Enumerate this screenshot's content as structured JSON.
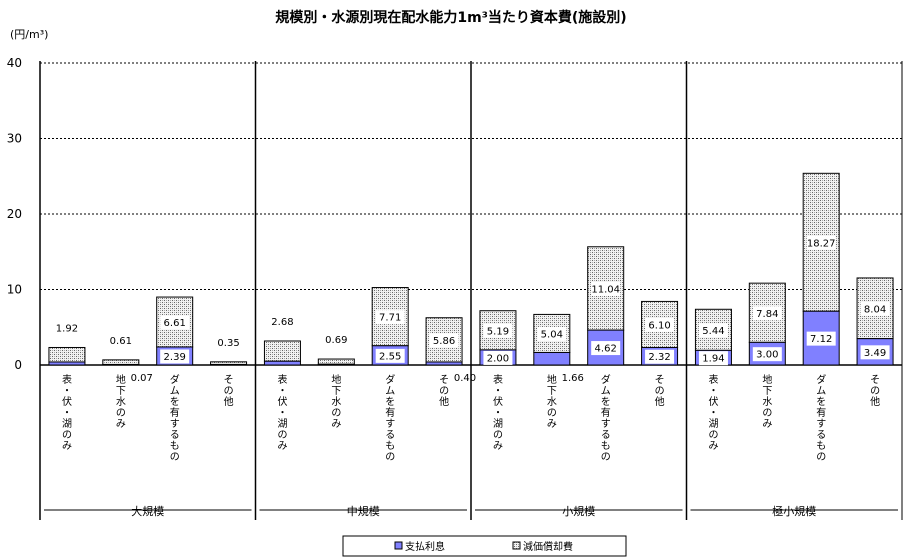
{
  "chart_data": {
    "type": "bar",
    "stacked": true,
    "title": "規模別・水源別現在配水能力1m³当たり資本費(施設別)",
    "unit_label": "(円/m³)",
    "ylim": [
      0,
      40
    ],
    "yticks": [
      "0",
      "10",
      "20",
      "30",
      "40"
    ],
    "grid": "dashed-horizontal",
    "legend_position": "bottom",
    "groups": [
      {
        "name": "大規模",
        "categories": [
          {
            "label": "表・伏・湖のみ",
            "interest": 0.4,
            "depreciation": 1.92
          },
          {
            "label": "地下水のみ",
            "interest": 0.07,
            "depreciation": 0.61
          },
          {
            "label": "ダムを有するもの",
            "interest": 2.39,
            "depreciation": 6.61
          },
          {
            "label": "その他",
            "interest": 0.07,
            "depreciation": 0.35
          }
        ]
      },
      {
        "name": "中規模",
        "categories": [
          {
            "label": "表・伏・湖のみ",
            "interest": 0.5,
            "depreciation": 2.68
          },
          {
            "label": "地下水のみ",
            "interest": 0.1,
            "depreciation": 0.69
          },
          {
            "label": "ダムを有するもの",
            "interest": 2.55,
            "depreciation": 7.71
          },
          {
            "label": "その他",
            "interest": 0.4,
            "depreciation": 5.86
          }
        ]
      },
      {
        "name": "小規模",
        "categories": [
          {
            "label": "表・伏・湖のみ",
            "interest": 2.0,
            "depreciation": 5.19
          },
          {
            "label": "地下水のみ",
            "interest": 1.66,
            "depreciation": 5.04
          },
          {
            "label": "ダムを有するもの",
            "interest": 4.62,
            "depreciation": 11.04
          },
          {
            "label": "その他",
            "interest": 2.32,
            "depreciation": 6.1
          }
        ]
      },
      {
        "name": "極小規模",
        "categories": [
          {
            "label": "表・伏・湖のみ",
            "interest": 1.94,
            "depreciation": 5.44
          },
          {
            "label": "地下水のみ",
            "interest": 3.0,
            "depreciation": 7.84
          },
          {
            "label": "ダムを有するもの",
            "interest": 7.12,
            "depreciation": 18.27
          },
          {
            "label": "その他",
            "interest": 3.49,
            "depreciation": 8.04
          }
        ]
      }
    ],
    "data_labels": {
      "interest": [
        "",
        "0.07",
        "2.39",
        "",
        "",
        "",
        "2.55",
        "0.40",
        "2.00",
        "1.66",
        "4.62",
        "2.32",
        "1.94",
        "3.00",
        "7.12",
        "3.49"
      ],
      "depreciation": [
        "1.92",
        "0.61",
        "6.61",
        "0.35",
        "2.68",
        "0.69",
        "7.71",
        "5.86",
        "5.19",
        "5.04",
        "11.04",
        "6.10",
        "5.44",
        "7.84",
        "18.27",
        "8.04"
      ]
    },
    "series": [
      {
        "name": "支払利息",
        "color": "#8080ff",
        "key": "interest"
      },
      {
        "name": "減価償却費",
        "color": "#d8d8d8",
        "key": "depreciation"
      }
    ]
  }
}
